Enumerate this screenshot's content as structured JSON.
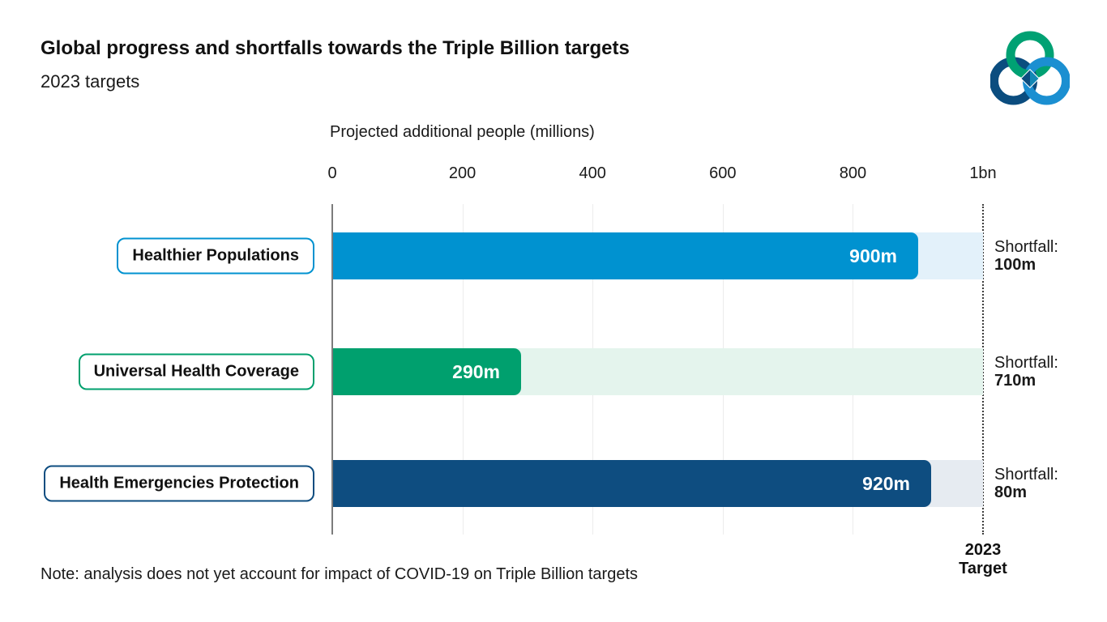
{
  "header": {
    "title": "Global progress and shortfalls towards the Triple Billion targets",
    "subtitle": "2023 targets"
  },
  "logo": {
    "name": "triple-billion-logo",
    "ring_colors": {
      "top": "#00a173",
      "bottom_left": "#0b4d7f",
      "bottom_right": "#1b8fd1"
    }
  },
  "chart_data": {
    "type": "bar",
    "orientation": "horizontal",
    "axis_title": "Projected additional people (millions)",
    "x_ticks": [
      0,
      200,
      400,
      600,
      800,
      1000
    ],
    "x_tick_labels": [
      "0",
      "200",
      "400",
      "600",
      "800",
      "1bn"
    ],
    "xlim": [
      0,
      1000
    ],
    "grid": true,
    "target": {
      "value": 1000,
      "label_line1": "2023",
      "label_line2": "Target"
    },
    "shortfall_prefix": "Shortfall:",
    "bars": [
      {
        "label": "Healthier Populations",
        "value": 900,
        "value_label": "900m",
        "shortfall": 100,
        "shortfall_label": "100m",
        "color": "#0092d0",
        "track_color": "#e3f1fa"
      },
      {
        "label": "Universal Health Coverage",
        "value": 290,
        "value_label": "290m",
        "shortfall": 710,
        "shortfall_label": "710m",
        "color": "#00a06e",
        "track_color": "#e4f4ed"
      },
      {
        "label": "Health Emergencies Protection",
        "value": 920,
        "value_label": "920m",
        "shortfall": 80,
        "shortfall_label": "80m",
        "color": "#0e4d80",
        "track_color": "#e6ebf1"
      }
    ]
  },
  "note": "Note: analysis does not yet account for impact of COVID-19 on Triple Billion targets"
}
